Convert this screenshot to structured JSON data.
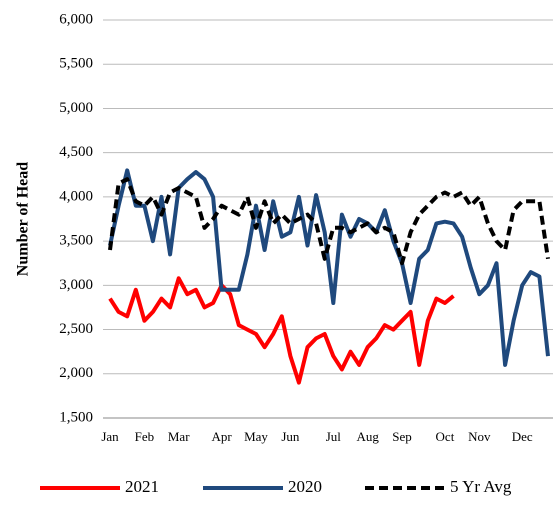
{
  "chart_data": {
    "type": "line",
    "y_label": "Number of Head",
    "categories": [
      "Jan",
      null,
      null,
      null,
      "Feb",
      null,
      null,
      null,
      "Mar",
      null,
      null,
      null,
      null,
      "Apr",
      null,
      null,
      null,
      "May",
      null,
      null,
      null,
      "Jun",
      null,
      null,
      null,
      null,
      "Jul",
      null,
      null,
      null,
      "Aug",
      null,
      null,
      null,
      "Sep",
      null,
      null,
      null,
      null,
      "Oct",
      null,
      null,
      null,
      "Nov",
      null,
      null,
      null,
      null,
      "Dec",
      null,
      null,
      null
    ],
    "series": [
      {
        "name": "2021",
        "color": "#ff0000",
        "dashed": false,
        "values": [
          2850,
          2700,
          2650,
          2950,
          2600,
          2700,
          2850,
          2750,
          3080,
          2900,
          2950,
          2750,
          2800,
          3000,
          2900,
          2550,
          2500,
          2450,
          2300,
          2450,
          2650,
          2200,
          1900,
          2300,
          2400,
          2450,
          2200,
          2050,
          2250,
          2100,
          2300,
          2400,
          2550,
          2500,
          2600,
          2700,
          2100,
          2600,
          2850,
          2800,
          2880,
          null,
          null,
          null,
          null,
          null,
          null,
          null,
          null,
          null,
          null,
          null
        ]
      },
      {
        "name": "2020",
        "color": "#1f497d",
        "dashed": false,
        "values": [
          3450,
          3900,
          4300,
          3900,
          3900,
          3500,
          4000,
          3350,
          4100,
          4200,
          4280,
          4200,
          4000,
          2950,
          2950,
          2950,
          3350,
          3900,
          3400,
          3950,
          3550,
          3600,
          4000,
          3450,
          4020,
          3600,
          2800,
          3800,
          3550,
          3750,
          3700,
          3600,
          3850,
          3500,
          3250,
          2800,
          3300,
          3400,
          3700,
          3720,
          3700,
          3550,
          3200,
          2900,
          3000,
          3250,
          2100,
          2600,
          3000,
          3150,
          3100,
          2200
        ]
      },
      {
        "name": "5 Yr Avg",
        "color": "#000000",
        "dashed": true,
        "values": [
          3400,
          4150,
          4200,
          3950,
          3900,
          4000,
          3800,
          4050,
          4100,
          4050,
          4000,
          3650,
          3750,
          3900,
          3850,
          3800,
          4000,
          3650,
          3950,
          3700,
          3800,
          3700,
          3750,
          3800,
          3700,
          3300,
          3650,
          3650,
          3600,
          3650,
          3700,
          3600,
          3650,
          3600,
          3250,
          3600,
          3800,
          3900,
          4000,
          4050,
          4000,
          4050,
          3900,
          4000,
          3700,
          3500,
          3400,
          3850,
          3950,
          3950,
          3950,
          3300
        ]
      }
    ],
    "ylim": [
      1500,
      6000
    ],
    "yticks": [
      {
        "value": 1500,
        "label": "1,500"
      },
      {
        "value": 2000,
        "label": "2,000"
      },
      {
        "value": 2500,
        "label": "2,500"
      },
      {
        "value": 3000,
        "label": "3,000"
      },
      {
        "value": 3500,
        "label": "3,500"
      },
      {
        "value": 4000,
        "label": "4,000"
      },
      {
        "value": 4500,
        "label": "4,500"
      },
      {
        "value": 5000,
        "label": "5,000"
      },
      {
        "value": 5500,
        "label": "5,500"
      },
      {
        "value": 6000,
        "label": "6,000"
      }
    ],
    "grid": true,
    "legend": "bottom"
  }
}
